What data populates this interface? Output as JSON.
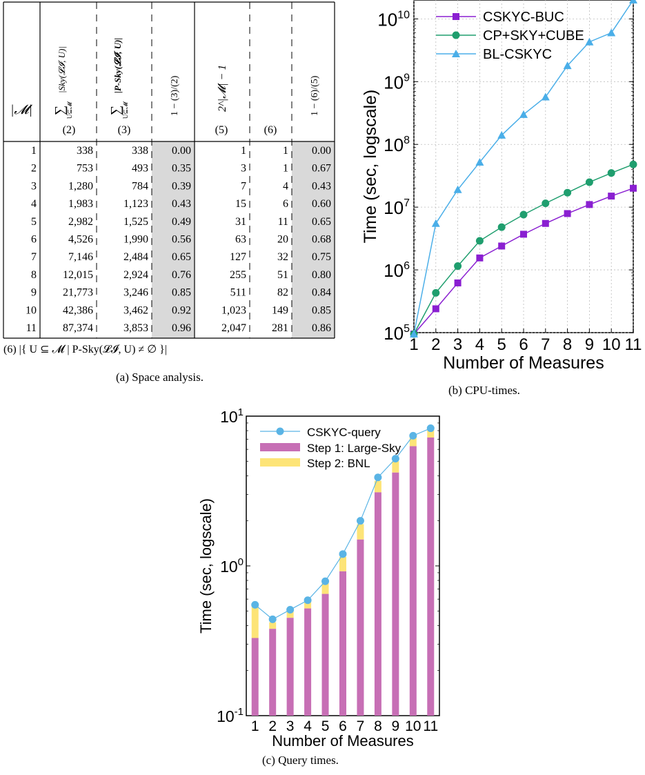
{
  "table": {
    "header": {
      "m_col": "|𝓜|",
      "col2_sum": "∑",
      "col2_sub": "U⊆𝓜",
      "col2_expr": "|Sky(𝓛𝓘, U)|",
      "col2_num": "(2)",
      "col3_sum": "∑",
      "col3_sub": "U⊆𝓜",
      "col3_expr": "|P-Sky(𝓛𝓘, U)|",
      "col3_num": "(3)",
      "col4_expr": "1 − (3)/(2)",
      "col5_expr": "2^|𝓜| − 1",
      "col5_num": "(5)",
      "col6_num": "(6)",
      "col7_expr": "1 − (6)/(5)"
    },
    "rows": [
      {
        "m": "1",
        "c2": "338",
        "c3": "338",
        "c4": "0.00",
        "c5": "1",
        "c6": "1",
        "c7": "0.00"
      },
      {
        "m": "2",
        "c2": "753",
        "c3": "493",
        "c4": "0.35",
        "c5": "3",
        "c6": "1",
        "c7": "0.67"
      },
      {
        "m": "3",
        "c2": "1,280",
        "c3": "784",
        "c4": "0.39",
        "c5": "7",
        "c6": "4",
        "c7": "0.43"
      },
      {
        "m": "4",
        "c2": "1,983",
        "c3": "1,123",
        "c4": "0.43",
        "c5": "15",
        "c6": "6",
        "c7": "0.60"
      },
      {
        "m": "5",
        "c2": "2,982",
        "c3": "1,525",
        "c4": "0.49",
        "c5": "31",
        "c6": "11",
        "c7": "0.65"
      },
      {
        "m": "6",
        "c2": "4,526",
        "c3": "1,990",
        "c4": "0.56",
        "c5": "63",
        "c6": "20",
        "c7": "0.68"
      },
      {
        "m": "7",
        "c2": "7,146",
        "c3": "2,484",
        "c4": "0.65",
        "c5": "127",
        "c6": "32",
        "c7": "0.75"
      },
      {
        "m": "8",
        "c2": "12,015",
        "c3": "2,924",
        "c4": "0.76",
        "c5": "255",
        "c6": "51",
        "c7": "0.80"
      },
      {
        "m": "9",
        "c2": "21,773",
        "c3": "3,246",
        "c4": "0.85",
        "c5": "511",
        "c6": "82",
        "c7": "0.84"
      },
      {
        "m": "10",
        "c2": "42,386",
        "c3": "3,462",
        "c4": "0.92",
        "c5": "1,023",
        "c6": "149",
        "c7": "0.85"
      },
      {
        "m": "11",
        "c2": "87,374",
        "c3": "3,853",
        "c4": "0.96",
        "c5": "2,047",
        "c6": "281",
        "c7": "0.86"
      }
    ],
    "footnote": "(6) |{ U ⊆ 𝓜  |  P-Sky(𝓛𝓘, U) ≠ ∅ }|",
    "shade_color": "#d9d9d9"
  },
  "captions": {
    "a": "(a) Space analysis.",
    "b": "(b) CPU-times.",
    "c": "(c) Query times."
  },
  "chart_data": [
    {
      "type": "line",
      "yscale": "log",
      "x": [
        1,
        2,
        3,
        4,
        5,
        6,
        7,
        8,
        9,
        10,
        11
      ],
      "xticks": [
        "1",
        "2",
        "3",
        "4",
        "5",
        "6",
        "7",
        "8",
        "9",
        "10",
        "11"
      ],
      "xlabel": "Number of Measures",
      "ylabel": "Time (sec, logscale)",
      "ylim": [
        100000,
        20000000000
      ],
      "yticks": [
        {
          "value": 100000,
          "base": "10",
          "exp": "5"
        },
        {
          "value": 1000000,
          "base": "10",
          "exp": "6"
        },
        {
          "value": 10000000,
          "base": "10",
          "exp": "7"
        },
        {
          "value": 100000000,
          "base": "10",
          "exp": "8"
        },
        {
          "value": 1000000000,
          "base": "10",
          "exp": "9"
        },
        {
          "value": 10000000000,
          "base": "10",
          "exp": "10"
        }
      ],
      "grid": true,
      "legend_position": "top-left",
      "series": [
        {
          "name": "CSKYC-BUC",
          "marker": "square",
          "color": "#8a1fd1",
          "values": [
            95000,
            240000,
            620000,
            1550000,
            2400000,
            3700000,
            5500000,
            7900000,
            11000000,
            15000000,
            20000000
          ]
        },
        {
          "name": "CP+SKY+CUBE",
          "marker": "circle",
          "color": "#1f9e6e",
          "values": [
            95000,
            430000,
            1150000,
            2900000,
            4800000,
            7600000,
            11500000,
            17000000,
            25000000,
            35000000,
            48000000
          ]
        },
        {
          "name": "BL-CSKYC",
          "marker": "triangle",
          "color": "#4aaee8",
          "values": [
            95000,
            5500000,
            19000000,
            52000000,
            140000000,
            300000000,
            570000000,
            1800000000,
            4300000000,
            6000000000,
            20000000000
          ]
        }
      ]
    },
    {
      "type": "bar",
      "stacked": true,
      "yscale": "log",
      "categories": [
        "1",
        "2",
        "3",
        "4",
        "5",
        "6",
        "7",
        "8",
        "9",
        "10",
        "11"
      ],
      "xlabel": "Number of Measures",
      "ylabel": "Time (sec, logscale)",
      "ylim": [
        0.1,
        10
      ],
      "yticks": [
        {
          "value": 0.1,
          "base": "10",
          "exp": "-1"
        },
        {
          "value": 1,
          "base": "10",
          "exp": "0"
        },
        {
          "value": 10,
          "base": "10",
          "exp": "1"
        }
      ],
      "grid": false,
      "legend_position": "top",
      "line_series": {
        "name": "CSKYC-query",
        "color": "#5ab4e5",
        "values": [
          0.55,
          0.44,
          0.51,
          0.59,
          0.79,
          1.2,
          2.0,
          3.9,
          5.2,
          7.4,
          8.3
        ]
      },
      "series": [
        {
          "name": "Step 1: Large-Sky",
          "color": "#c76fb5",
          "values": [
            0.33,
            0.38,
            0.45,
            0.52,
            0.65,
            0.92,
            1.5,
            3.1,
            4.2,
            6.3,
            7.2
          ]
        },
        {
          "name": "Step 2: BNL",
          "color": "#fde477",
          "values": [
            0.55,
            0.42,
            0.5,
            0.58,
            0.77,
            1.15,
            1.9,
            3.7,
            5.0,
            7.2,
            8.1
          ]
        }
      ]
    }
  ]
}
